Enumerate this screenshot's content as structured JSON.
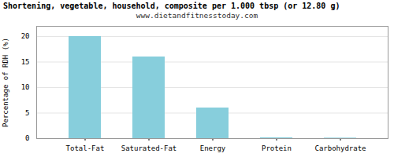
{
  "chart_data": {
    "type": "bar",
    "title": "Shortening, vegetable, household, composite per 1.000 tbsp (or 12.80 g)",
    "subtitle": "www.dietandfitnesstoday.com",
    "categories": [
      "Total-Fat",
      "Saturated-Fat",
      "Energy",
      "Protein",
      "Carbohydrate"
    ],
    "values": [
      20,
      16,
      6,
      0.15,
      0.1
    ],
    "color": "#87CEDC",
    "ylabel": "Percentage of RDH (%)",
    "ylim": [
      0,
      22
    ],
    "yticks": [
      0,
      5,
      10,
      15,
      20
    ],
    "grid": true
  }
}
